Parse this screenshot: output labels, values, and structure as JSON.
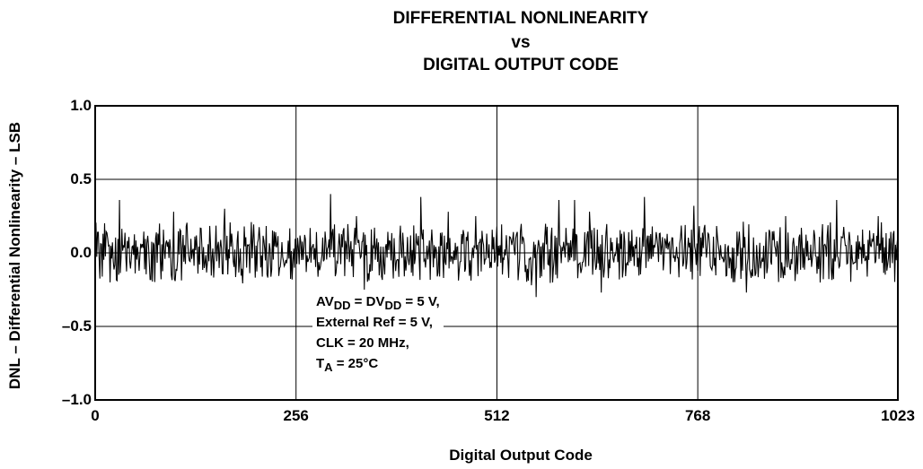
{
  "chart_data": {
    "type": "line",
    "title": [
      "DIFFERENTIAL NONLINEARITY",
      "vs",
      "DIGITAL OUTPUT CODE"
    ],
    "xlabel": "Digital Output Code",
    "ylabel": "DNL – Differential Nonlinearity – LSB",
    "xlim": [
      0,
      1023
    ],
    "ylim": [
      -1.0,
      1.0
    ],
    "x_ticks": [
      {
        "value": 0,
        "label": "0"
      },
      {
        "value": 256,
        "label": "256"
      },
      {
        "value": 512,
        "label": "512"
      },
      {
        "value": 768,
        "label": "768"
      },
      {
        "value": 1023,
        "label": "1023"
      }
    ],
    "y_ticks": [
      {
        "value": 1.0,
        "label": "1.0"
      },
      {
        "value": 0.5,
        "label": "0.5"
      },
      {
        "value": 0.0,
        "label": "0.0"
      },
      {
        "value": -0.5,
        "label": "–0.5"
      },
      {
        "value": -1.0,
        "label": "–1.0"
      }
    ],
    "grid": true,
    "line_color": "#000000",
    "annotation": {
      "line1": {
        "a": "AV",
        "a_sub": "DD",
        "b": " = DV",
        "b_sub": "DD",
        "c": " = 5 V,"
      },
      "line2": "External Ref = 5 V,",
      "line3": "CLK = 20 MHz,",
      "line4": {
        "a": "T",
        "a_sub": "A",
        "c": " = 25°C"
      }
    },
    "series": [
      {
        "x_start": 0,
        "x_step": 1,
        "count": 1024,
        "y_typical_range": [
          -0.2,
          0.2
        ],
        "peaks": [
          {
            "x": 31,
            "y": 0.36
          },
          {
            "x": 100,
            "y": 0.28
          },
          {
            "x": 165,
            "y": 0.3
          },
          {
            "x": 190,
            "y": 0.18
          },
          {
            "x": 300,
            "y": 0.4
          },
          {
            "x": 333,
            "y": 0.25
          },
          {
            "x": 343,
            "y": -0.25
          },
          {
            "x": 415,
            "y": 0.38
          },
          {
            "x": 450,
            "y": 0.28
          },
          {
            "x": 485,
            "y": 0.25
          },
          {
            "x": 556,
            "y": -0.22
          },
          {
            "x": 562,
            "y": -0.3
          },
          {
            "x": 591,
            "y": 0.36
          },
          {
            "x": 611,
            "y": 0.36
          },
          {
            "x": 630,
            "y": 0.28
          },
          {
            "x": 645,
            "y": -0.27
          },
          {
            "x": 700,
            "y": 0.38
          },
          {
            "x": 763,
            "y": 0.32
          },
          {
            "x": 830,
            "y": -0.27
          },
          {
            "x": 880,
            "y": 0.25
          },
          {
            "x": 945,
            "y": 0.36
          },
          {
            "x": 998,
            "y": 0.25
          }
        ]
      }
    ]
  }
}
